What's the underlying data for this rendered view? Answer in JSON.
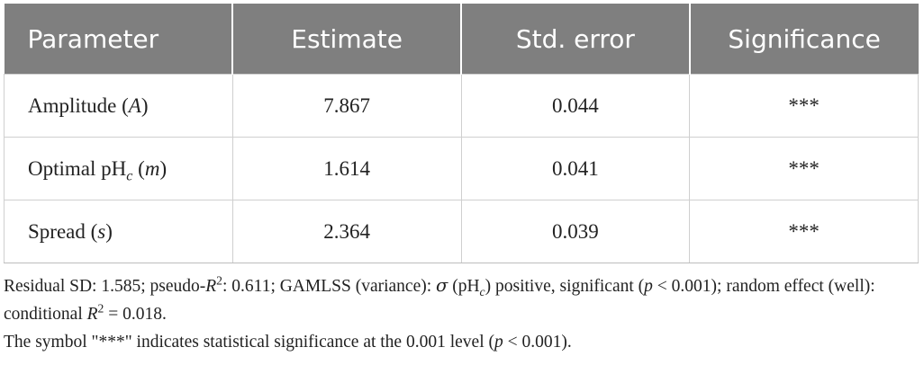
{
  "table": {
    "header": [
      "Parameter",
      "Estimate",
      "Std. error",
      "Significance"
    ],
    "rows": [
      [
        [
          "Amplitude (",
          "A",
          ")"
        ],
        7.867,
        0.044,
        "***"
      ],
      [
        [
          "Optimal pH",
          "c",
          " (",
          "m",
          ")"
        ],
        1.614,
        0.041,
        "***"
      ],
      [
        [
          "Spread (",
          "s",
          ")"
        ],
        2.364,
        0.039,
        "***"
      ]
    ]
  },
  "notes": [
    [
      "Residual SD: 1.585; pseudo-",
      "R",
      "2",
      ": 0.611; GAMLSS (variance): ",
      "σ",
      " (pH",
      "c",
      ") positive, significant (",
      "p",
      " < 0.001); random effect (well): conditional ",
      "R",
      "2",
      " = 0.018."
    ],
    [
      "The symbol \"***\" indicates statistical significance at the 0.001 level (",
      "p",
      " < 0.001)."
    ]
  ]
}
